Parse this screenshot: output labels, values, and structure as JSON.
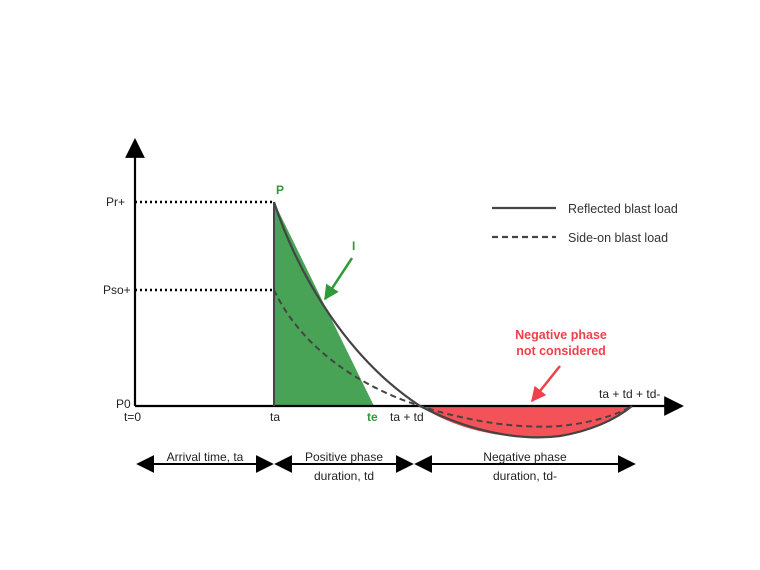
{
  "diagram": {
    "y_axis": {
      "pr_label": "Pr+",
      "pso_label": "Pso+",
      "p0_label": "P0"
    },
    "x_axis": {
      "t0_label": "t=0",
      "ta_label": "ta",
      "te_label": "te",
      "ta_td_label": "ta + td",
      "end_label": "ta + td + td-"
    },
    "peak_label": "P",
    "impulse_label": "I",
    "annotation": {
      "line1": "Negative phase",
      "line2": "not considered"
    },
    "legend": {
      "reflected": "Reflected blast load",
      "side_on": "Side-on blast load"
    },
    "durations": {
      "arrival": "Arrival time, ta",
      "positive_line1": "Positive phase",
      "positive_line2": "duration, td",
      "negative_line1": "Negative phase",
      "negative_line2": "duration, td-"
    },
    "colors": {
      "green": "#2e9a3a",
      "red": "#f0404a",
      "line": "#444444"
    }
  }
}
